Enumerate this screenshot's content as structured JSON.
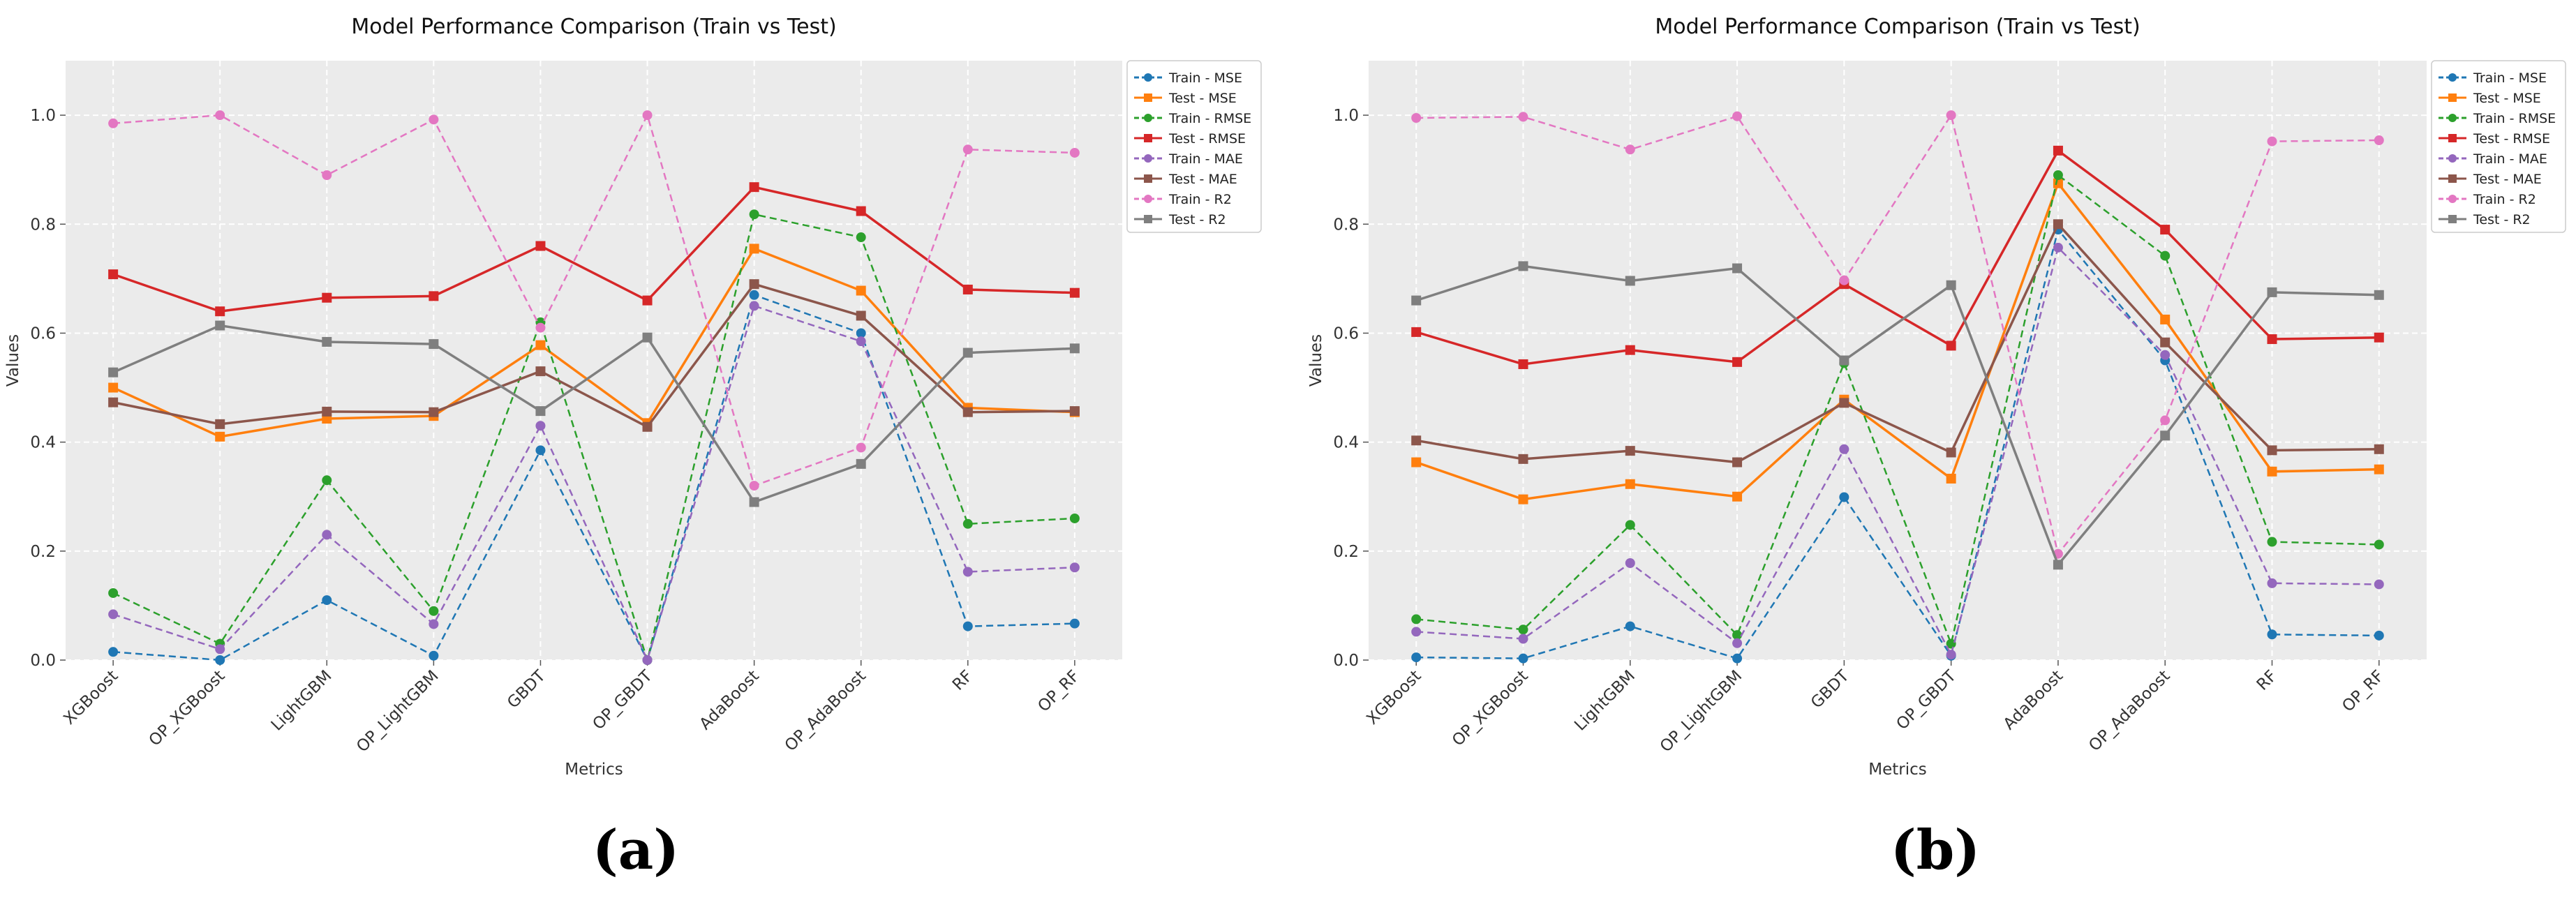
{
  "chart_data": [
    {
      "type": "line",
      "title": "Model Performance Comparison (Train vs Test)",
      "xlabel": "Metrics",
      "ylabel": "Values",
      "caption": "(a)",
      "ylim": [
        0,
        1.1
      ],
      "yticks": [
        0.0,
        0.2,
        0.4,
        0.6,
        0.8,
        1.0
      ],
      "ytick_labels": [
        "0.0",
        "0.2",
        "0.4",
        "0.6",
        "0.8",
        "1.0"
      ],
      "grid": true,
      "legend_position": "outside-top-right",
      "categories": [
        "XGBoost",
        "OP_XGBoost",
        "LightGBM",
        "OP_LightGBM",
        "GBDT",
        "OP_GBDT",
        "AdaBoost",
        "OP_AdaBoost",
        "RF",
        "OP_RF"
      ],
      "series": [
        {
          "name": "Train - MSE",
          "color": "#1f77b4",
          "style": "dashed",
          "marker": "circle",
          "values": [
            0.015,
            0.0,
            0.11,
            0.008,
            0.385,
            0.0,
            0.67,
            0.6,
            0.062,
            0.067
          ]
        },
        {
          "name": "Test - MSE",
          "color": "#ff7f0e",
          "style": "solid",
          "marker": "square",
          "values": [
            0.5,
            0.41,
            0.443,
            0.448,
            0.578,
            0.435,
            0.755,
            0.678,
            0.463,
            0.455
          ]
        },
        {
          "name": "Train - RMSE",
          "color": "#2ca02c",
          "style": "dashed",
          "marker": "circle",
          "values": [
            0.123,
            0.03,
            0.33,
            0.09,
            0.62,
            0.0,
            0.818,
            0.776,
            0.25,
            0.26
          ]
        },
        {
          "name": "Test - RMSE",
          "color": "#d62728",
          "style": "solid",
          "marker": "square",
          "values": [
            0.708,
            0.64,
            0.665,
            0.668,
            0.76,
            0.66,
            0.868,
            0.824,
            0.68,
            0.674
          ]
        },
        {
          "name": "Train - MAE",
          "color": "#9467bd",
          "style": "dashed",
          "marker": "circle",
          "values": [
            0.084,
            0.02,
            0.23,
            0.066,
            0.43,
            0.0,
            0.65,
            0.585,
            0.162,
            0.17
          ]
        },
        {
          "name": "Test - MAE",
          "color": "#8c564b",
          "style": "solid",
          "marker": "square",
          "values": [
            0.473,
            0.433,
            0.456,
            0.455,
            0.53,
            0.428,
            0.69,
            0.632,
            0.455,
            0.457
          ]
        },
        {
          "name": "Train - R2",
          "color": "#e377c2",
          "style": "dashed",
          "marker": "circle",
          "values": [
            0.985,
            1.0,
            0.89,
            0.992,
            0.61,
            1.0,
            0.32,
            0.39,
            0.937,
            0.931
          ]
        },
        {
          "name": "Test - R2",
          "color": "#7f7f7f",
          "style": "solid",
          "marker": "square",
          "values": [
            0.528,
            0.614,
            0.584,
            0.58,
            0.457,
            0.592,
            0.29,
            0.36,
            0.564,
            0.572
          ]
        }
      ]
    },
    {
      "type": "line",
      "title": "Model Performance Comparison (Train vs Test)",
      "xlabel": "Metrics",
      "ylabel": "Values",
      "caption": "(b)",
      "ylim": [
        0,
        1.1
      ],
      "yticks": [
        0.0,
        0.2,
        0.4,
        0.6,
        0.8,
        1.0
      ],
      "ytick_labels": [
        "0.0",
        "0.2",
        "0.4",
        "0.6",
        "0.8",
        "1.0"
      ],
      "grid": true,
      "legend_position": "outside-top-right",
      "categories": [
        "XGBoost",
        "OP_XGBoost",
        "LightGBM",
        "OP_LightGBM",
        "GBDT",
        "OP_GBDT",
        "AdaBoost",
        "OP_AdaBoost",
        "RF",
        "OP_RF"
      ],
      "series": [
        {
          "name": "Train - MSE",
          "color": "#1f77b4",
          "style": "dashed",
          "marker": "circle",
          "values": [
            0.005,
            0.003,
            0.062,
            0.003,
            0.299,
            0.008,
            0.79,
            0.55,
            0.047,
            0.045
          ]
        },
        {
          "name": "Test - MSE",
          "color": "#ff7f0e",
          "style": "solid",
          "marker": "square",
          "values": [
            0.363,
            0.295,
            0.323,
            0.3,
            0.478,
            0.333,
            0.875,
            0.625,
            0.346,
            0.35
          ]
        },
        {
          "name": "Train - RMSE",
          "color": "#2ca02c",
          "style": "dashed",
          "marker": "circle",
          "values": [
            0.075,
            0.056,
            0.248,
            0.046,
            0.545,
            0.03,
            0.89,
            0.742,
            0.217,
            0.212
          ]
        },
        {
          "name": "Test - RMSE",
          "color": "#d62728",
          "style": "solid",
          "marker": "square",
          "values": [
            0.602,
            0.543,
            0.569,
            0.547,
            0.69,
            0.577,
            0.935,
            0.79,
            0.589,
            0.592
          ]
        },
        {
          "name": "Train - MAE",
          "color": "#9467bd",
          "style": "dashed",
          "marker": "circle",
          "values": [
            0.052,
            0.039,
            0.178,
            0.031,
            0.387,
            0.01,
            0.757,
            0.56,
            0.141,
            0.139
          ]
        },
        {
          "name": "Test - MAE",
          "color": "#8c564b",
          "style": "solid",
          "marker": "square",
          "values": [
            0.403,
            0.369,
            0.384,
            0.363,
            0.472,
            0.381,
            0.8,
            0.583,
            0.385,
            0.387
          ]
        },
        {
          "name": "Train - R2",
          "color": "#e377c2",
          "style": "dashed",
          "marker": "circle",
          "values": [
            0.995,
            0.997,
            0.937,
            0.998,
            0.697,
            1.0,
            0.195,
            0.44,
            0.952,
            0.954
          ]
        },
        {
          "name": "Test - R2",
          "color": "#7f7f7f",
          "style": "solid",
          "marker": "square",
          "values": [
            0.66,
            0.723,
            0.696,
            0.719,
            0.55,
            0.688,
            0.175,
            0.412,
            0.675,
            0.67
          ]
        }
      ]
    }
  ]
}
